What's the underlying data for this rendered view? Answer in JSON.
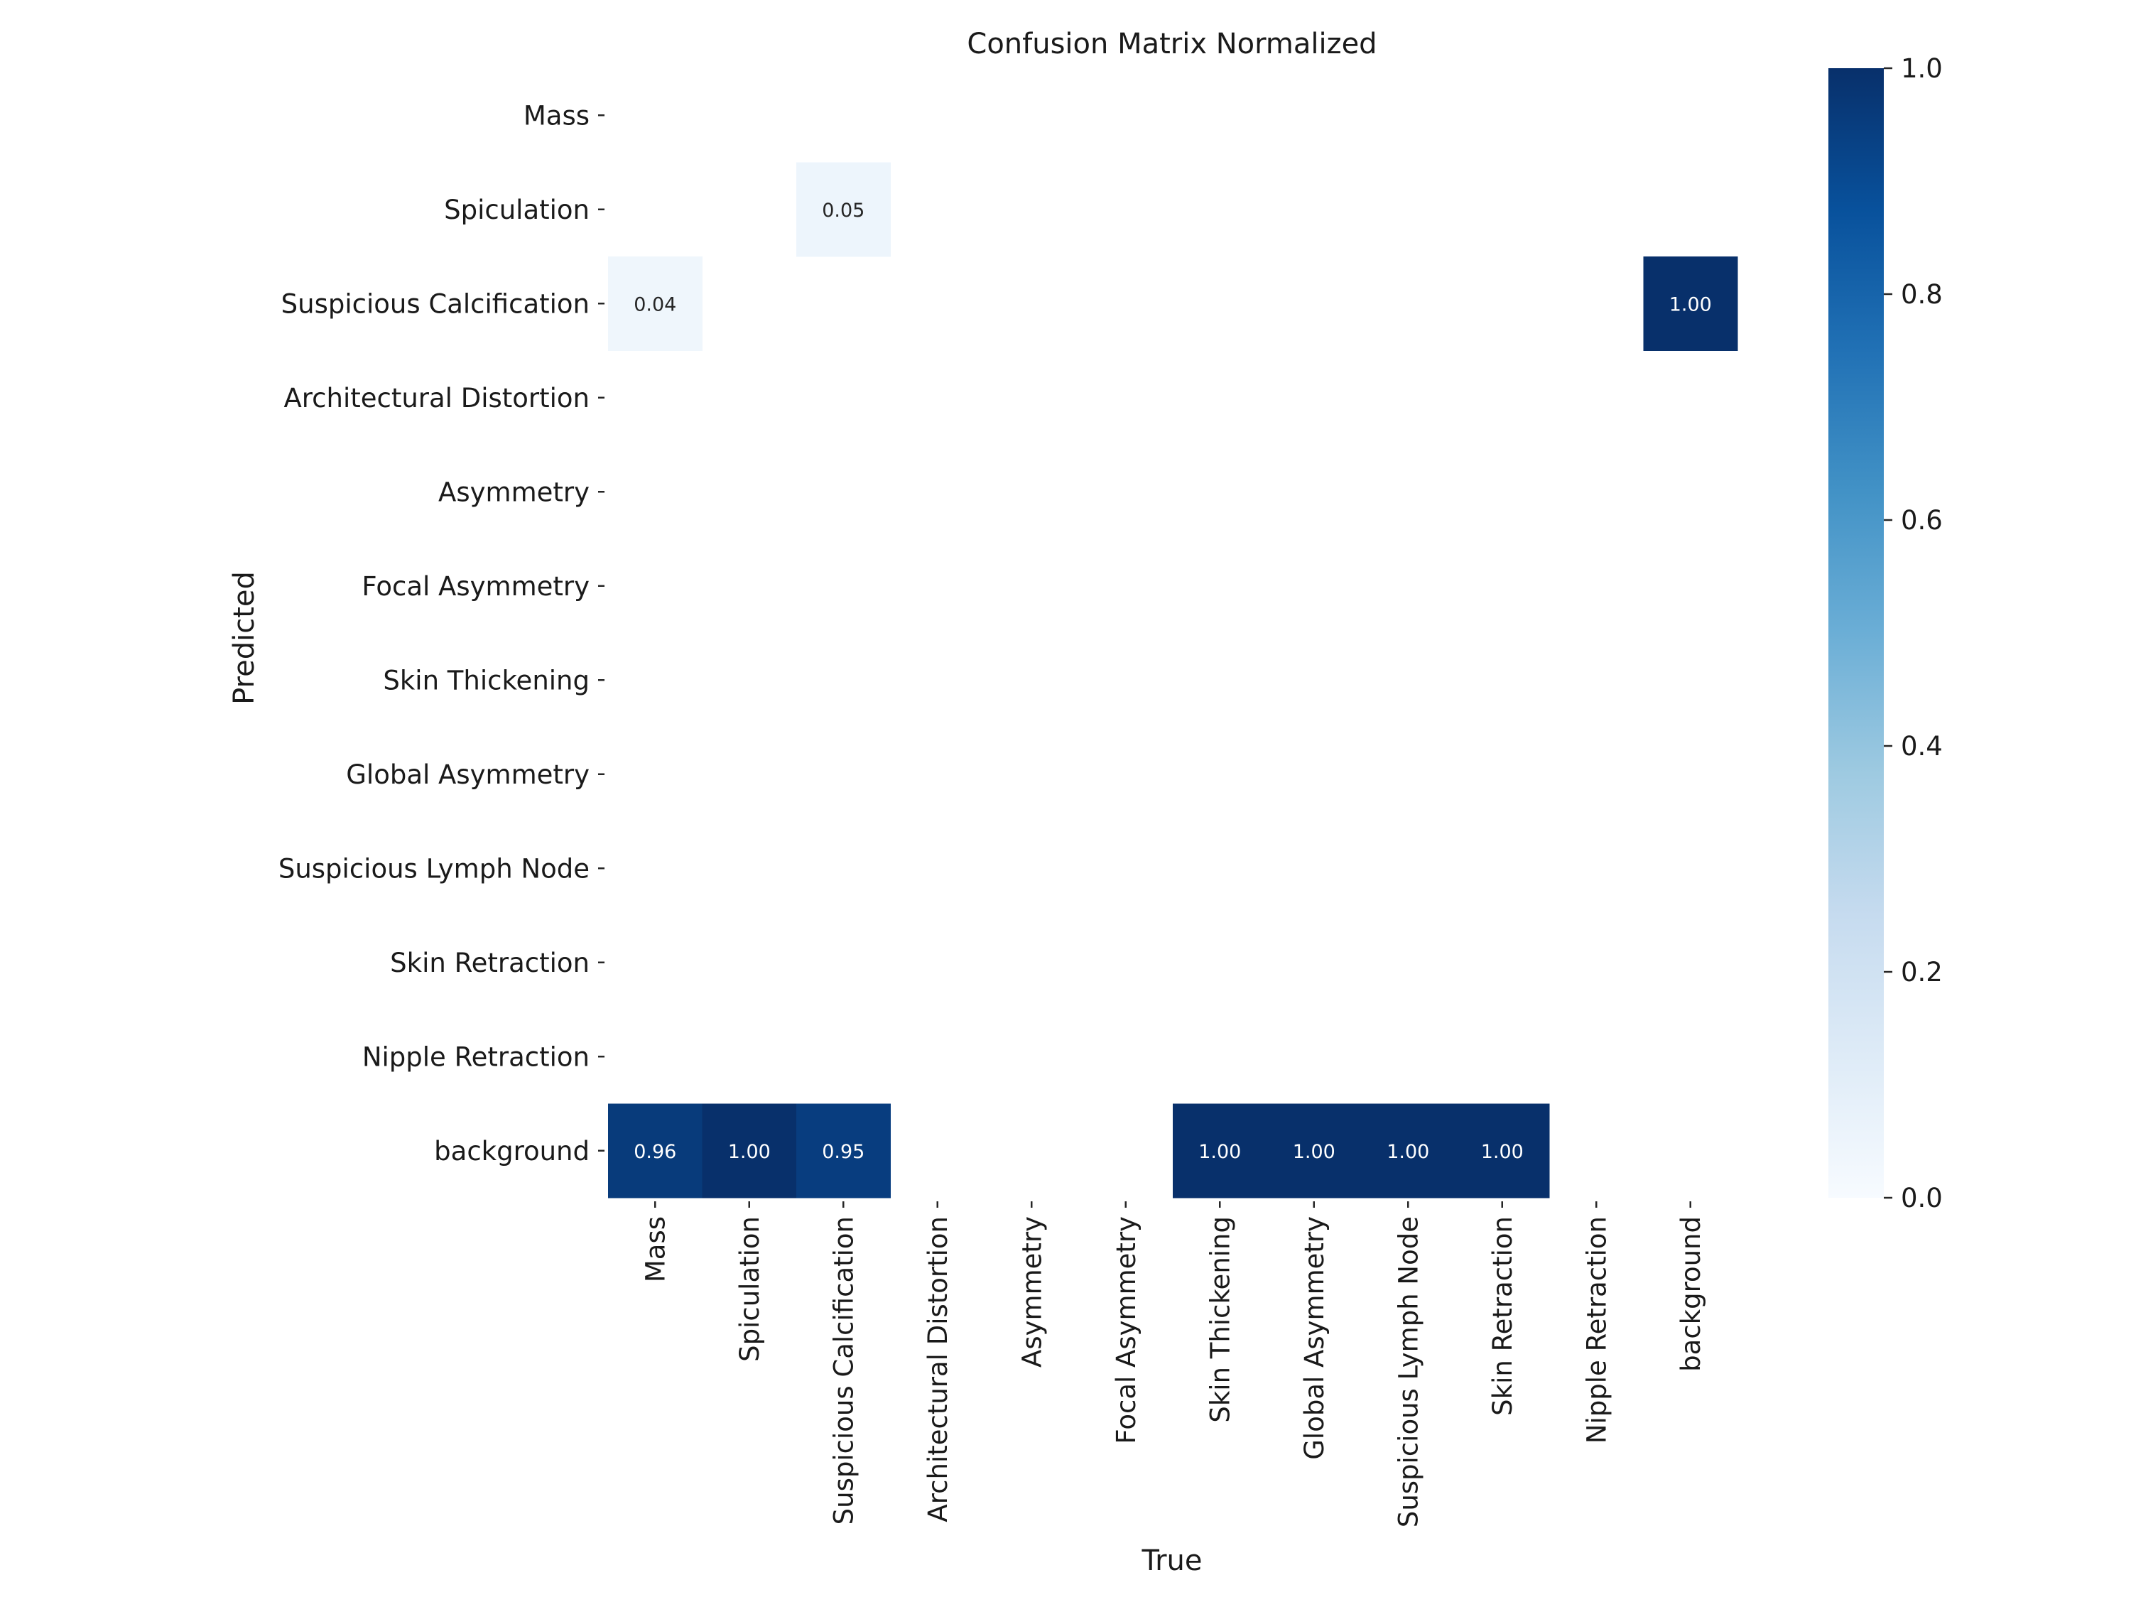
{
  "chart_data": {
    "type": "heatmap",
    "title": "Confusion Matrix Normalized",
    "xlabel": "True",
    "ylabel": "Predicted",
    "x_categories": [
      "Mass",
      "Spiculation",
      "Suspicious Calcification",
      "Architectural Distortion",
      "Asymmetry",
      "Focal Asymmetry",
      "Skin Thickening",
      "Global Asymmetry",
      "Suspicious Lymph Node",
      "Skin Retraction",
      "Nipple Retraction",
      "background"
    ],
    "y_categories": [
      "Mass",
      "Spiculation",
      "Suspicious Calcification",
      "Architectural Distortion",
      "Asymmetry",
      "Focal Asymmetry",
      "Skin Thickening",
      "Global Asymmetry",
      "Suspicious Lymph Node",
      "Skin Retraction",
      "Nipple Retraction",
      "background"
    ],
    "cells": [
      {
        "row": 1,
        "col": 2,
        "value": 0.05,
        "label": "0.05"
      },
      {
        "row": 2,
        "col": 0,
        "value": 0.04,
        "label": "0.04"
      },
      {
        "row": 2,
        "col": 11,
        "value": 1.0,
        "label": "1.00"
      },
      {
        "row": 11,
        "col": 0,
        "value": 0.96,
        "label": "0.96"
      },
      {
        "row": 11,
        "col": 1,
        "value": 1.0,
        "label": "1.00"
      },
      {
        "row": 11,
        "col": 2,
        "value": 0.95,
        "label": "0.95"
      },
      {
        "row": 11,
        "col": 6,
        "value": 1.0,
        "label": "1.00"
      },
      {
        "row": 11,
        "col": 7,
        "value": 1.0,
        "label": "1.00"
      },
      {
        "row": 11,
        "col": 8,
        "value": 1.0,
        "label": "1.00"
      },
      {
        "row": 11,
        "col": 9,
        "value": 1.0,
        "label": "1.00"
      }
    ],
    "colorbar": {
      "ticks": [
        0.0,
        0.2,
        0.4,
        0.6,
        0.8,
        1.0
      ],
      "tick_labels": [
        "0.0",
        "0.2",
        "0.4",
        "0.6",
        "0.8",
        "1.0"
      ],
      "range": [
        0,
        1
      ],
      "colormap": "Blues"
    },
    "colors": {
      "low": "#f7fbff",
      "mid": "#6baed6",
      "high": "#08306b",
      "text_dark": "#262626",
      "text_light": "#ffffff"
    },
    "grid": false
  }
}
